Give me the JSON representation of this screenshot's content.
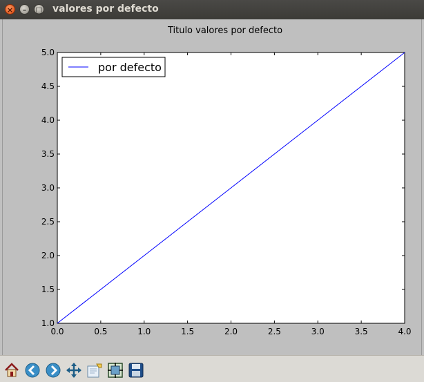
{
  "window": {
    "title": "valores por defecto"
  },
  "chart_data": {
    "type": "line",
    "title": "Titulo valores por defecto",
    "xlabel": "",
    "ylabel": "",
    "xlim": [
      0.0,
      4.0
    ],
    "ylim": [
      1.0,
      5.0
    ],
    "xticks": [
      "0.0",
      "0.5",
      "1.0",
      "1.5",
      "2.0",
      "2.5",
      "3.0",
      "3.5",
      "4.0"
    ],
    "yticks": [
      "1.0",
      "1.5",
      "2.0",
      "2.5",
      "3.0",
      "3.5",
      "4.0",
      "4.5",
      "5.0"
    ],
    "grid": false,
    "legend_position": "top-left",
    "series": [
      {
        "name": "por defecto",
        "color": "#0000ff",
        "x": [
          0,
          1,
          2,
          3,
          4
        ],
        "y": [
          1,
          2,
          3,
          4,
          5
        ]
      }
    ]
  },
  "toolbar": {
    "buttons": [
      {
        "icon": "home-icon",
        "name": "home-button"
      },
      {
        "icon": "back-icon",
        "name": "back-button"
      },
      {
        "icon": "forward-icon",
        "name": "forward-button"
      },
      {
        "icon": "pan-icon",
        "name": "pan-button"
      },
      {
        "icon": "zoom-icon",
        "name": "zoom-button"
      },
      {
        "icon": "subplots-icon",
        "name": "subplots-button"
      },
      {
        "icon": "save-icon",
        "name": "save-button"
      }
    ]
  }
}
